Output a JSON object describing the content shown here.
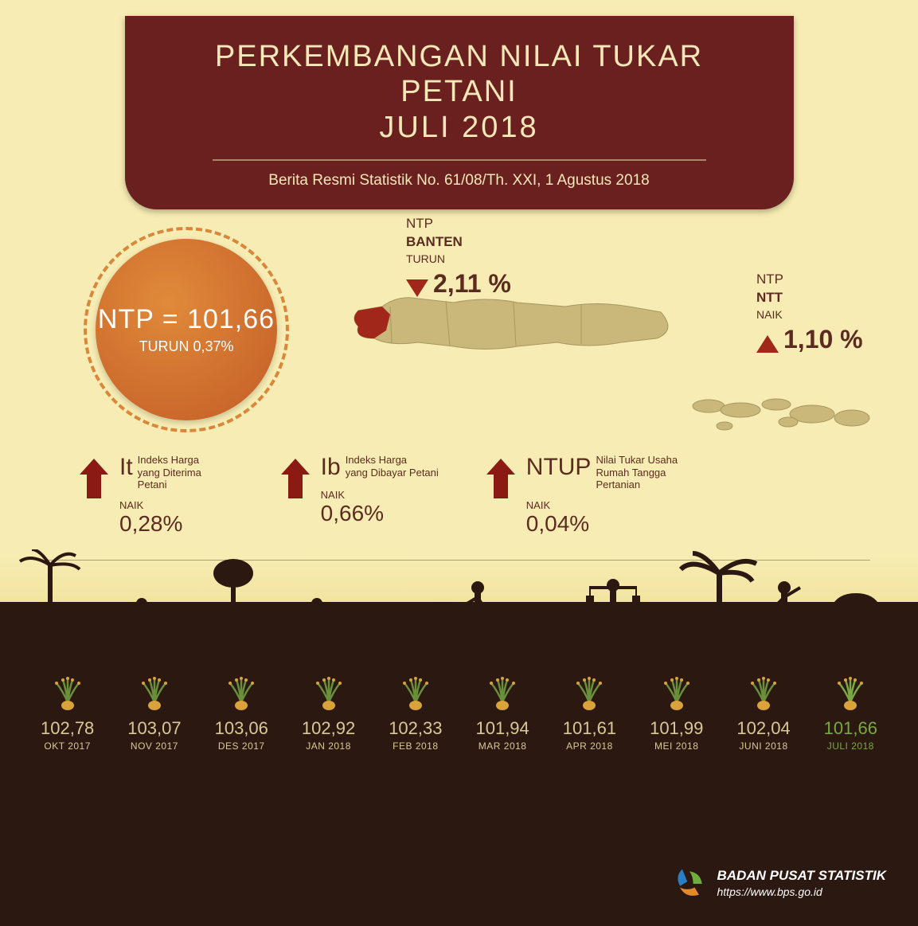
{
  "header": {
    "title_line1": "PERKEMBANGAN NILAI TUKAR PETANI",
    "title_line2": "JULI 2018",
    "subtitle": "Berita Resmi Statistik No. 61/08/Th. XXI, 1 Agustus 2018"
  },
  "ntp_circle": {
    "label": "NTP = 101,66",
    "change": "TURUN 0,37%",
    "disc_color": "#d97a30",
    "ring_color": "#d9873a"
  },
  "map": {
    "banten": {
      "l1": "NTP",
      "l2": "BANTEN",
      "dir": "TURUN",
      "pct": "2,11 %",
      "arrow": "down",
      "color": "#a0271a"
    },
    "ntt": {
      "l1": "NTP",
      "l2": "NTT",
      "dir": "NAIK",
      "pct": "1,10 %",
      "arrow": "up",
      "color": "#a0271a"
    },
    "base_color": "#c9b87a",
    "highlight_color": "#a0271a"
  },
  "indicators": [
    {
      "code": "It",
      "code_sub": "",
      "desc": "Indeks Harga\nyang Diterima Petani",
      "dir": "NAIK",
      "pct": "0,28%"
    },
    {
      "code": "Ib",
      "code_sub": "",
      "desc": "Indeks Harga\nyang Dibayar Petani",
      "dir": "NAIK",
      "pct": "0,66%"
    },
    {
      "code": "NTUP",
      "code_sub": "",
      "desc": "Nilai Tukar Usaha\nRumah Tangga Pertanian",
      "dir": "NAIK",
      "pct": "0,04%"
    }
  ],
  "timeline": [
    {
      "value": "102,78",
      "month": "OKT 2017",
      "current": false
    },
    {
      "value": "103,07",
      "month": "NOV 2017",
      "current": false
    },
    {
      "value": "103,06",
      "month": "DES 2017",
      "current": false
    },
    {
      "value": "102,92",
      "month": "JAN 2018",
      "current": false
    },
    {
      "value": "102,33",
      "month": "FEB 2018",
      "current": false
    },
    {
      "value": "101,94",
      "month": "MAR 2018",
      "current": false
    },
    {
      "value": "101,61",
      "month": "APR 2018",
      "current": false
    },
    {
      "value": "101,99",
      "month": "MEI 2018",
      "current": false
    },
    {
      "value": "102,04",
      "month": "JUNI 2018",
      "current": false
    },
    {
      "value": "101,66",
      "month": "JULI 2018",
      "current": true
    }
  ],
  "footer": {
    "org": "BADAN PUSAT STATISTIK",
    "url": "https://www.bps.go.id",
    "logo_colors": {
      "blue": "#2a7fc3",
      "green": "#6fae3e",
      "orange": "#e28a2a"
    }
  },
  "palette": {
    "bg_top": "#f7ecb3",
    "bg_bottom": "#2b1810",
    "header_bg": "#6b2020",
    "header_text": "#f4e8b8",
    "body_text": "#5c2b1f",
    "arrow": "#8b1a12",
    "timeline_text": "#d8c998",
    "timeline_current": "#7aa843"
  }
}
